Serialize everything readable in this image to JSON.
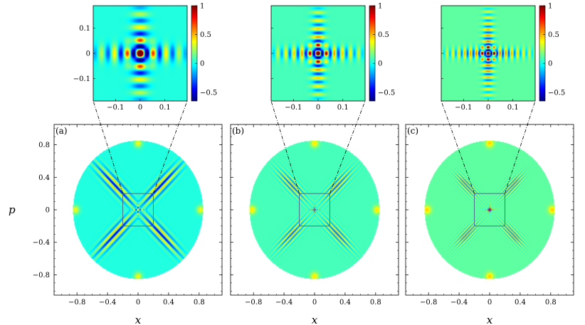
{
  "chart_data": {
    "type": "heatmap",
    "shared": {
      "xlabel": "x",
      "ylabel": "p",
      "main_xticks": [
        -0.8,
        -0.4,
        0,
        0.4,
        0.8
      ],
      "main_xticklabels": [
        "−0.8",
        "−0.4",
        "0",
        "0.4",
        "0.8"
      ],
      "main_yticks": [
        0.8,
        0.4,
        0,
        -0.4,
        -0.8
      ],
      "main_yticklabels": [
        "0.8",
        "0.4",
        "0",
        "−0.4",
        "−0.8"
      ],
      "main_xlim": [
        -1.1,
        1.1
      ],
      "main_ylim": [
        -1.05,
        1.05
      ],
      "disk_radius": 0.85,
      "zoom_box_halfwidth": 0.2,
      "inset_xticks": [
        -0.1,
        0,
        0.1
      ],
      "inset_xticklabels": [
        "−0.1",
        "0",
        "0.1"
      ],
      "inset_yticks": [
        0.1,
        0,
        -0.1
      ],
      "inset_yticklabels": [
        "0.1",
        "0",
        "−0.1"
      ],
      "inset_lim": [
        -0.19,
        0.19
      ],
      "colorbar_ticks": [
        1,
        0.5,
        0,
        -0.5
      ],
      "colorbar_ticklabels": [
        "1",
        "0.5",
        "0",
        "−0.5"
      ],
      "colorbar_range": [
        -0.65,
        1
      ],
      "colormap": "jet",
      "peak_positions": [
        [
          0,
          0.82
        ],
        [
          0,
          -0.82
        ],
        [
          0.82,
          0
        ],
        [
          -0.82,
          0
        ]
      ],
      "peak_value": 0.35
    },
    "panels": [
      {
        "label": "(a)",
        "background_value": 0.02,
        "inset_background_value": 0.02,
        "fringe_frequency": 1.0,
        "inset_frequency": 1.0,
        "show_inset_yticks": true
      },
      {
        "label": "(b)",
        "background_value": 0.08,
        "inset_background_value": 0.08,
        "fringe_frequency": 1.6,
        "inset_frequency": 1.6,
        "show_inset_yticks": false
      },
      {
        "label": "(c)",
        "background_value": 0.12,
        "inset_background_value": 0.12,
        "fringe_frequency": 2.2,
        "inset_frequency": 2.2,
        "show_inset_yticks": false
      }
    ]
  }
}
